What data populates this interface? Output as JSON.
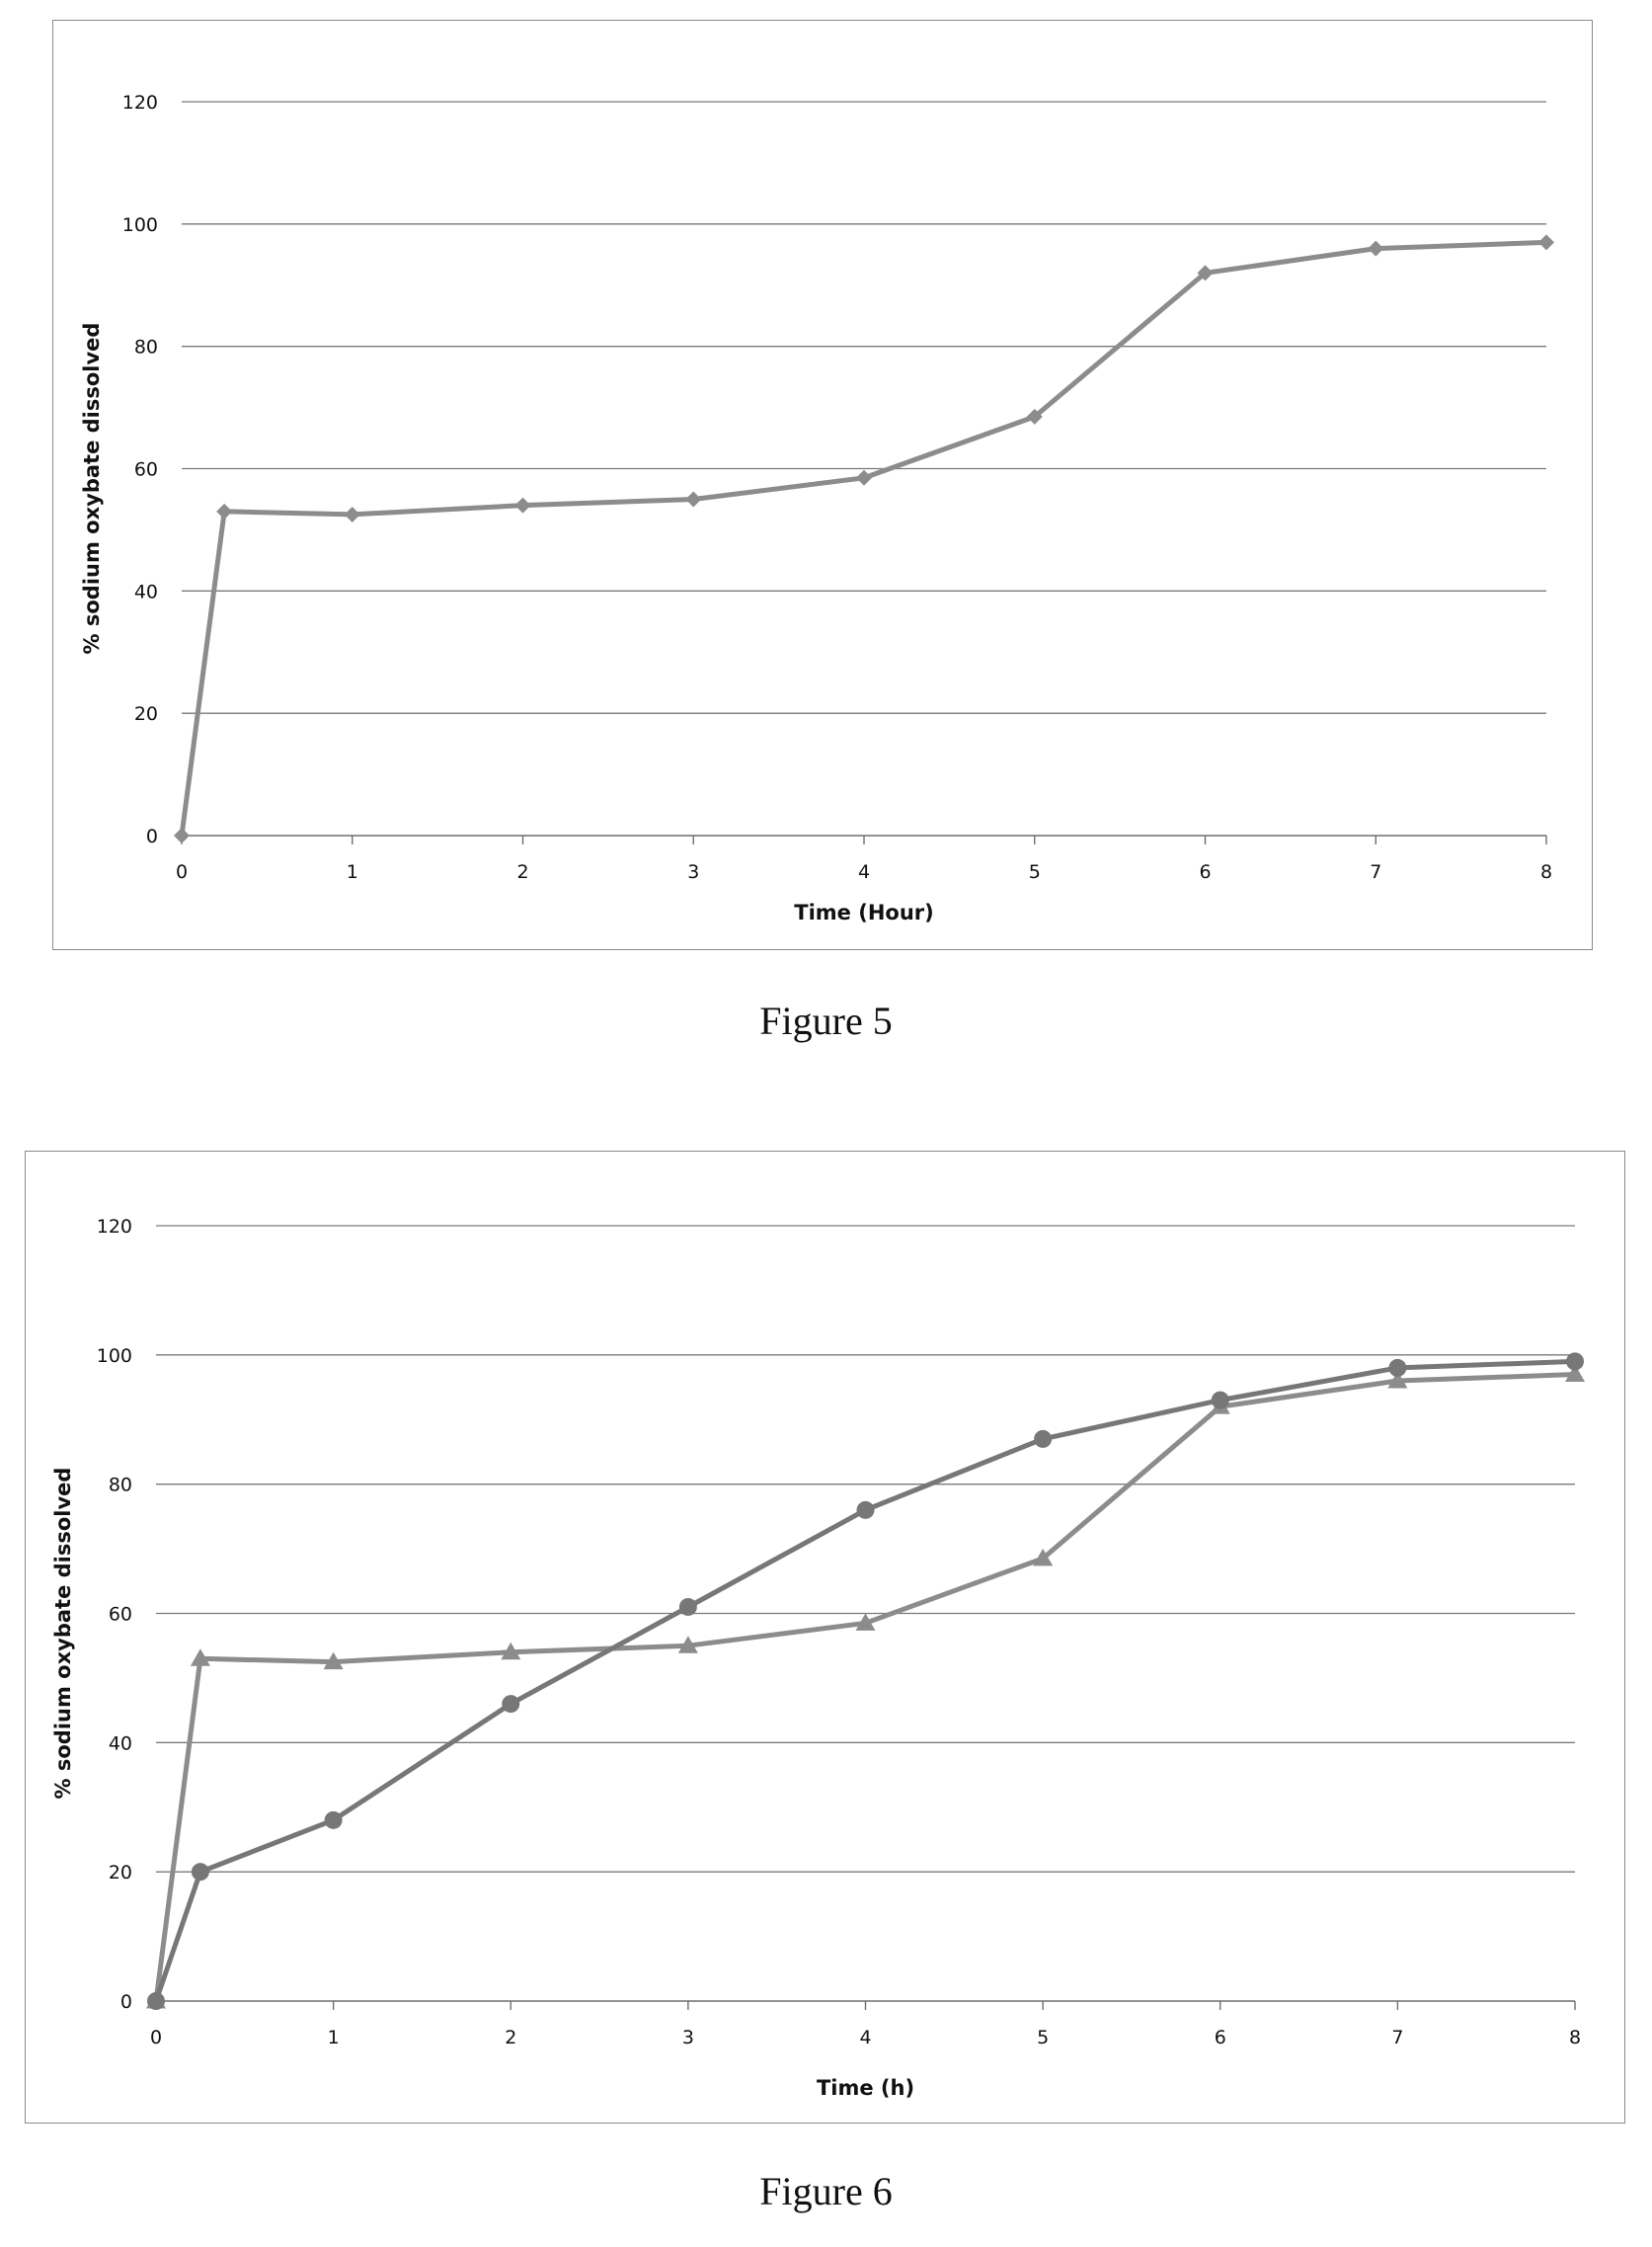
{
  "chart_data": [
    {
      "type": "line",
      "caption": "Figure 5",
      "xlabel": "Time (Hour)",
      "ylabel": "% sodium oxybate dissolved",
      "xlim": [
        0,
        8
      ],
      "ylim": [
        0,
        120
      ],
      "xticks": [
        0,
        1,
        2,
        3,
        4,
        5,
        6,
        7,
        8
      ],
      "yticks": [
        0,
        20,
        40,
        60,
        80,
        100,
        120
      ],
      "grid": true,
      "legend": "none",
      "series": [
        {
          "marker": "diamond",
          "color": "#8c8c8c",
          "x": [
            0,
            0.25,
            1,
            2,
            3,
            4,
            5,
            6,
            7,
            8
          ],
          "values": [
            0,
            53,
            52.5,
            54,
            55,
            58.5,
            68.5,
            92,
            96,
            97
          ]
        }
      ]
    },
    {
      "type": "line",
      "caption": "Figure 6",
      "xlabel": "Time (h)",
      "ylabel": "% sodium oxybate dissolved",
      "xlim": [
        0,
        8
      ],
      "ylim": [
        0,
        120
      ],
      "xticks": [
        0,
        1,
        2,
        3,
        4,
        5,
        6,
        7,
        8
      ],
      "yticks": [
        0,
        20,
        40,
        60,
        80,
        100,
        120
      ],
      "grid": true,
      "legend": "none",
      "series": [
        {
          "marker": "triangle",
          "color": "#8c8c8c",
          "x": [
            0,
            0.25,
            1,
            2,
            3,
            4,
            5,
            6,
            7,
            8
          ],
          "values": [
            0,
            53,
            52.5,
            54,
            55,
            58.5,
            68.5,
            92,
            96,
            97
          ]
        },
        {
          "marker": "circle",
          "color": "#777777",
          "x": [
            0,
            0.25,
            1,
            2,
            3,
            4,
            5,
            6,
            7,
            8
          ],
          "values": [
            0,
            20,
            28,
            46,
            61,
            76,
            87,
            93,
            98,
            99
          ]
        }
      ]
    }
  ]
}
